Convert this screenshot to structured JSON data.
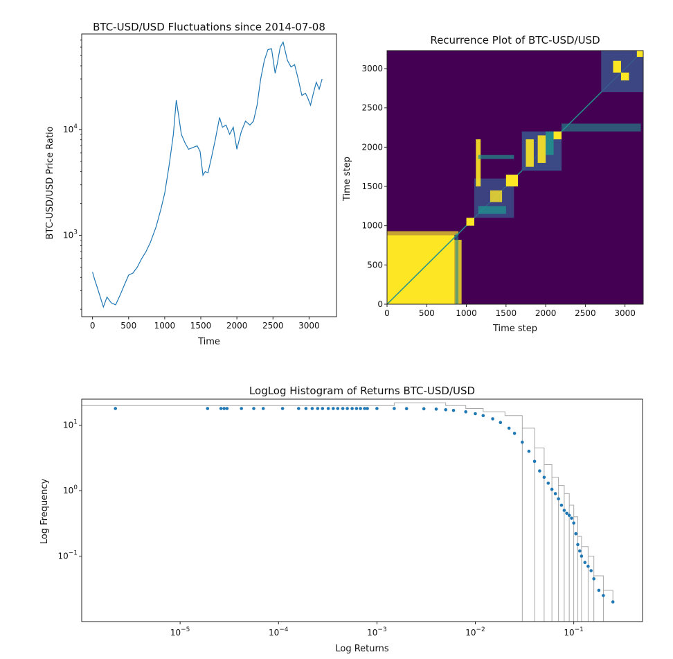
{
  "chart_data": [
    {
      "type": "line",
      "title": "BTC-USD/USD Fluctuations since 2014-07-08",
      "xlabel": "Time",
      "ylabel": "BTC-USD/USD Price Ratio",
      "xlim": [
        -150,
        3380
      ],
      "ylim": [
        170,
        80000
      ],
      "yscale": "log",
      "x_ticks": [
        0,
        500,
        1000,
        1500,
        2000,
        2500,
        3000
      ],
      "y_ticks": [
        {
          "value": 1000,
          "base": "10",
          "exp": "3"
        },
        {
          "value": 10000,
          "base": "10",
          "exp": "4"
        }
      ],
      "color": "#1f77b4",
      "series": [
        {
          "x": [
            0,
            30,
            60,
            100,
            150,
            200,
            260,
            320,
            380,
            450,
            500,
            560,
            620,
            680,
            740,
            800,
            880,
            950,
            1000,
            1060,
            1120,
            1160,
            1190,
            1230,
            1280,
            1330,
            1400,
            1450,
            1490,
            1530,
            1560,
            1600,
            1650,
            1700,
            1760,
            1800,
            1850,
            1900,
            1950,
            2000,
            2060,
            2120,
            2180,
            2230,
            2280,
            2330,
            2380,
            2430,
            2480,
            2530,
            2560,
            2600,
            2640,
            2700,
            2750,
            2800,
            2850,
            2900,
            2950,
            2980,
            3020,
            3060,
            3100,
            3140,
            3180
          ],
          "y": [
            450,
            380,
            330,
            270,
            210,
            260,
            230,
            220,
            270,
            350,
            420,
            440,
            500,
            600,
            700,
            850,
            1200,
            1800,
            2500,
            4500,
            9000,
            19000,
            14000,
            9000,
            7500,
            6500,
            6800,
            7000,
            6200,
            3700,
            4000,
            3900,
            5500,
            8000,
            13000,
            10500,
            11000,
            9000,
            10500,
            6500,
            9500,
            12000,
            11000,
            12000,
            17000,
            30000,
            45000,
            57000,
            58000,
            34000,
            42000,
            60000,
            67000,
            45000,
            39000,
            41000,
            30000,
            21000,
            22000,
            20000,
            17000,
            22000,
            28000,
            24000,
            30000
          ]
        }
      ]
    },
    {
      "type": "heatmap",
      "title": "Recurrence Plot of BTC-USD/USD",
      "xlabel": "Time step",
      "ylabel": "Time step",
      "xlim": [
        0,
        3230
      ],
      "ylim": [
        0,
        3230
      ],
      "x_ticks": [
        0,
        500,
        1000,
        1500,
        2000,
        2500,
        3000
      ],
      "y_ticks": [
        0,
        500,
        1000,
        1500,
        2000,
        2500,
        3000
      ],
      "colors": {
        "background": "#440154",
        "recurrent": "#fde725",
        "teal": "#21908d",
        "blue": "#3b528b"
      }
    },
    {
      "type": "scatter",
      "title": "LogLog Histogram of Returns BTC-USD/USD",
      "xlabel": "Log Returns",
      "ylabel": "Log Frequency",
      "xscale": "log",
      "yscale": "log",
      "xlim": [
        1e-06,
        0.5
      ],
      "ylim": [
        0.01,
        25
      ],
      "x_ticks": [
        {
          "value": 1e-05,
          "base": "10",
          "exp": "−5"
        },
        {
          "value": 0.0001,
          "base": "10",
          "exp": "−4"
        },
        {
          "value": 0.001,
          "base": "10",
          "exp": "−3"
        },
        {
          "value": 0.01,
          "base": "10",
          "exp": "−2"
        },
        {
          "value": 0.1,
          "base": "10",
          "exp": "−1"
        }
      ],
      "y_ticks": [
        {
          "value": 0.1,
          "base": "10",
          "exp": "−1"
        },
        {
          "value": 1,
          "base": "10",
          "exp": "0"
        },
        {
          "value": 10,
          "base": "10",
          "exp": "1"
        }
      ],
      "color": "#1f77b4",
      "series": [
        {
          "x": [
            2.2e-06,
            1.9e-05,
            2.6e-05,
            2.8e-05,
            3e-05,
            4.2e-05,
            5.6e-05,
            7e-05,
            0.00011,
            0.00016,
            0.00019,
            0.00022,
            0.00025,
            0.00028,
            0.00032,
            0.00036,
            0.0004,
            0.00045,
            0.0005,
            0.00056,
            0.00062,
            0.00068,
            0.00075,
            0.0008,
            0.001,
            0.0015,
            0.002,
            0.003,
            0.004,
            0.005,
            0.006,
            0.008,
            0.01,
            0.012,
            0.015,
            0.018,
            0.022,
            0.025,
            0.03,
            0.035,
            0.04,
            0.045,
            0.05,
            0.055,
            0.06,
            0.065,
            0.07,
            0.075,
            0.08,
            0.085,
            0.09,
            0.095,
            0.1,
            0.105,
            0.11,
            0.115,
            0.12,
            0.13,
            0.14,
            0.15,
            0.16,
            0.18,
            0.2,
            0.25
          ],
          "y": [
            18,
            18,
            18,
            18,
            18,
            18,
            18,
            18,
            18,
            18,
            18,
            18,
            18,
            18,
            18,
            18,
            18,
            18,
            18,
            18,
            18,
            18,
            18,
            18,
            18,
            18,
            17.9,
            17.8,
            17.6,
            17.2,
            16.8,
            16,
            15,
            14,
            12.5,
            11,
            9,
            7.5,
            5.5,
            4,
            2.8,
            2,
            1.6,
            1.3,
            1.05,
            0.9,
            0.75,
            0.6,
            0.5,
            0.45,
            0.42,
            0.38,
            0.32,
            0.22,
            0.15,
            0.12,
            0.1,
            0.08,
            0.07,
            0.06,
            0.045,
            0.03,
            0.025,
            0.02
          ]
        }
      ],
      "step": {
        "color": "#a8a8a8",
        "x": [
          1e-06,
          0.001,
          0.0015,
          0.003,
          0.005,
          0.008,
          0.012,
          0.02,
          0.03,
          0.04,
          0.05,
          0.06,
          0.07,
          0.08,
          0.09,
          0.1,
          0.11,
          0.12,
          0.14,
          0.16,
          0.2,
          0.25
        ],
        "y": [
          20,
          20,
          22,
          22,
          20,
          18,
          16,
          14,
          9,
          4.5,
          2.5,
          1.6,
          1.2,
          0.9,
          0.6,
          0.4,
          0.2,
          0.14,
          0.1,
          0.05,
          0.03,
          0.02
        ]
      }
    }
  ]
}
